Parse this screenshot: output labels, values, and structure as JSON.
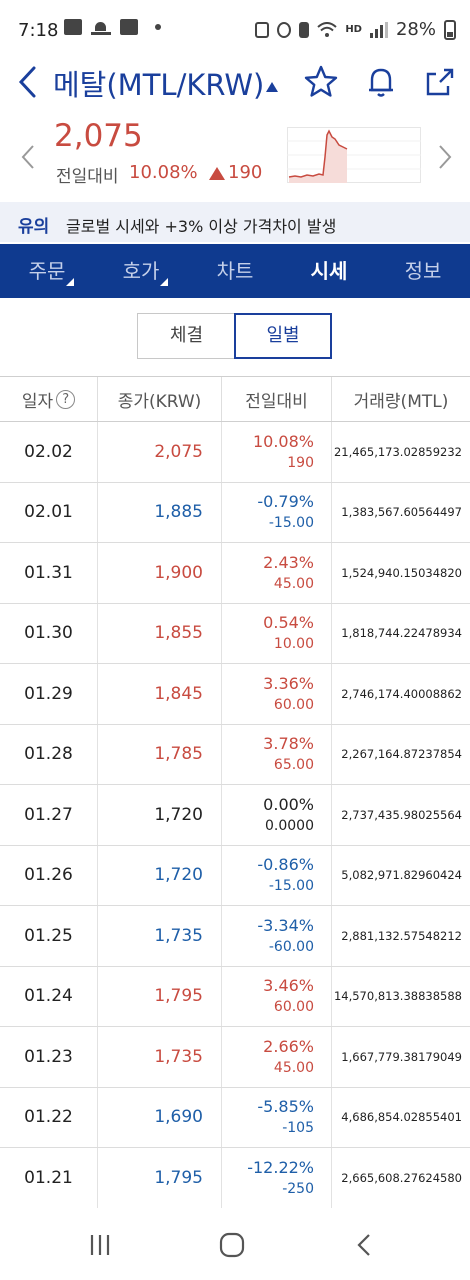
{
  "status_bar": {
    "time": "7:18",
    "battery": "28%",
    "hd_label": "HD"
  },
  "header": {
    "title": "메탈(MTL/KRW)"
  },
  "summary": {
    "price": "2,075",
    "change_label": "전일대비",
    "change_pct": "10.08%",
    "change_amount": "190"
  },
  "notice": {
    "tag": "유의",
    "text": "글로벌 시세와 +3% 이상 가격차이 발생"
  },
  "tabs": [
    {
      "label": "주문"
    },
    {
      "label": "호가"
    },
    {
      "label": "차트"
    },
    {
      "label": "시세"
    },
    {
      "label": "정보"
    }
  ],
  "segment": {
    "tick_label": "체결",
    "daily_label": "일별"
  },
  "table": {
    "headers": {
      "date": "일자",
      "close": "종가(KRW)",
      "change": "전일대비",
      "volume": "거래량(MTL)"
    },
    "rows": [
      {
        "date": "02.02",
        "close": "2,075",
        "pct": "10.08%",
        "amt": "190",
        "vol": "21,465,173.02859232",
        "dir": "up"
      },
      {
        "date": "02.01",
        "close": "1,885",
        "pct": "-0.79%",
        "amt": "-15.00",
        "vol": "1,383,567.60564497",
        "dir": "down"
      },
      {
        "date": "01.31",
        "close": "1,900",
        "pct": "2.43%",
        "amt": "45.00",
        "vol": "1,524,940.15034820",
        "dir": "up"
      },
      {
        "date": "01.30",
        "close": "1,855",
        "pct": "0.54%",
        "amt": "10.00",
        "vol": "1,818,744.22478934",
        "dir": "up"
      },
      {
        "date": "01.29",
        "close": "1,845",
        "pct": "3.36%",
        "amt": "60.00",
        "vol": "2,746,174.40008862",
        "dir": "up"
      },
      {
        "date": "01.28",
        "close": "1,785",
        "pct": "3.78%",
        "amt": "65.00",
        "vol": "2,267,164.87237854",
        "dir": "up"
      },
      {
        "date": "01.27",
        "close": "1,720",
        "pct": "0.00%",
        "amt": "0.0000",
        "vol": "2,737,435.98025564",
        "dir": "flat"
      },
      {
        "date": "01.26",
        "close": "1,720",
        "pct": "-0.86%",
        "amt": "-15.00",
        "vol": "5,082,971.82960424",
        "dir": "down"
      },
      {
        "date": "01.25",
        "close": "1,735",
        "pct": "-3.34%",
        "amt": "-60.00",
        "vol": "2,881,132.57548212",
        "dir": "down"
      },
      {
        "date": "01.24",
        "close": "1,795",
        "pct": "3.46%",
        "amt": "60.00",
        "vol": "14,570,813.38838588",
        "dir": "up"
      },
      {
        "date": "01.23",
        "close": "1,735",
        "pct": "2.66%",
        "amt": "45.00",
        "vol": "1,667,779.38179049",
        "dir": "up"
      },
      {
        "date": "01.22",
        "close": "1,690",
        "pct": "-5.85%",
        "amt": "-105",
        "vol": "4,686,854.02855401",
        "dir": "down"
      },
      {
        "date": "01.21",
        "close": "1,795",
        "pct": "-12.22%",
        "amt": "-250",
        "vol": "2,665,608.27624580",
        "dir": "down"
      }
    ]
  },
  "icons": {
    "back": "back-arrow-icon",
    "star": "star-icon",
    "bell": "bell-icon",
    "share": "share-icon",
    "help": "question-circle-icon"
  },
  "colors": {
    "up": "#c84b40",
    "down": "#1f5fa8",
    "brand": "#0f3a8f",
    "accent": "#1a3f9c"
  }
}
